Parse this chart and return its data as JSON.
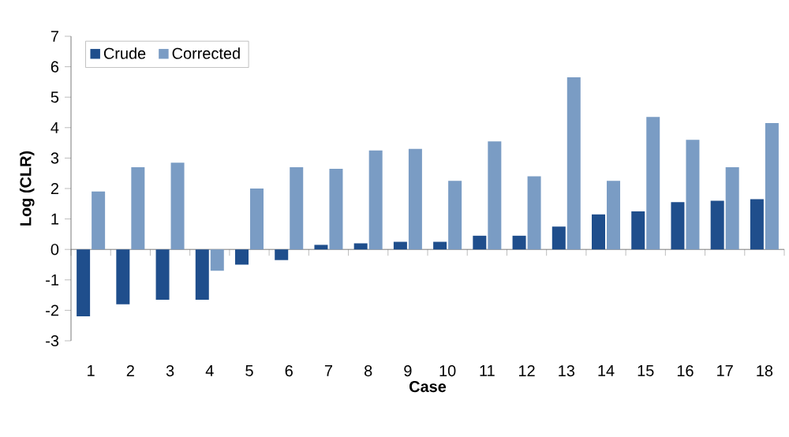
{
  "chart_data": {
    "type": "bar",
    "xlabel": "Case",
    "ylabel": "Log (CLR)",
    "categories": [
      "1",
      "2",
      "3",
      "4",
      "5",
      "6",
      "7",
      "8",
      "9",
      "10",
      "11",
      "12",
      "13",
      "14",
      "15",
      "16",
      "17",
      "18"
    ],
    "series": [
      {
        "name": "Crude",
        "color": "#1f4e8c",
        "values": [
          -2.2,
          -1.8,
          -1.65,
          -1.65,
          -0.5,
          -0.35,
          0.15,
          0.2,
          0.25,
          0.25,
          0.45,
          0.45,
          0.75,
          1.15,
          1.25,
          1.55,
          1.6,
          1.65
        ]
      },
      {
        "name": "Corrected",
        "color": "#7a9cc4",
        "values": [
          1.9,
          2.7,
          2.85,
          -0.7,
          2.0,
          2.7,
          2.65,
          3.25,
          3.3,
          2.25,
          3.55,
          2.4,
          5.65,
          2.25,
          4.35,
          3.6,
          2.7,
          4.15
        ]
      }
    ],
    "ylim": [
      -3,
      7
    ],
    "yticks": [
      -3,
      -2,
      -1,
      0,
      1,
      2,
      3,
      4,
      5,
      6,
      7
    ],
    "legend": "top left"
  }
}
